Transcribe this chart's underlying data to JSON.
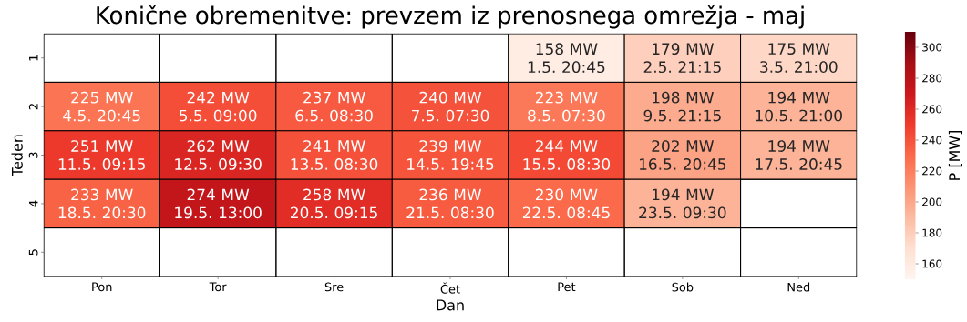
{
  "chart_data": {
    "type": "heatmap",
    "title": "Konične obremenitve: prevzem iz prenosnega omrežja - maj",
    "xlabel": "Dan",
    "ylabel": "Teden",
    "clabel": "P [MW]",
    "categories": [
      "Pon",
      "Tor",
      "Sre",
      "Čet",
      "Pet",
      "Sob",
      "Ned"
    ],
    "y_categories": [
      "1",
      "2",
      "3",
      "4",
      "5"
    ],
    "cells": [
      [
        null,
        null,
        null,
        null,
        158,
        179,
        175
      ],
      [
        225,
        242,
        237,
        240,
        223,
        198,
        194
      ],
      [
        251,
        262,
        241,
        239,
        244,
        202,
        194
      ],
      [
        233,
        274,
        258,
        236,
        230,
        194,
        null
      ],
      [
        null,
        null,
        null,
        null,
        null,
        null,
        null
      ]
    ],
    "cell_labels": [
      [
        null,
        null,
        null,
        null,
        "158 MW 1.5. 20:45",
        "179 MW 2.5. 21:15",
        "175 MW 3.5. 21:00"
      ],
      [
        "225 MW 4.5. 20:45",
        "242 MW 5.5. 09:00",
        "237 MW 6.5. 08:30",
        "240 MW 7.5. 07:30",
        "223 MW 8.5. 07:30",
        "198 MW 9.5. 21:15",
        "194 MW 10.5. 21:00"
      ],
      [
        "251 MW 11.5. 09:15",
        "262 MW 12.5. 09:30",
        "241 MW 13.5. 08:30",
        "239 MW 14.5. 19:45",
        "244 MW 15.5. 08:30",
        "202 MW 16.5. 20:45",
        "194 MW 17.5. 20:45"
      ],
      [
        "233 MW 18.5. 20:30",
        "274 MW 19.5. 13:00",
        "258 MW 20.5. 09:15",
        "236 MW 21.5. 08:30",
        "230 MW 22.5. 08:45",
        "194 MW 23.5. 09:30",
        null
      ],
      [
        null,
        null,
        null,
        null,
        null,
        null,
        null
      ]
    ],
    "clim": [
      150,
      310
    ],
    "cticks": [
      160,
      180,
      200,
      220,
      240,
      260,
      280,
      300
    ]
  }
}
